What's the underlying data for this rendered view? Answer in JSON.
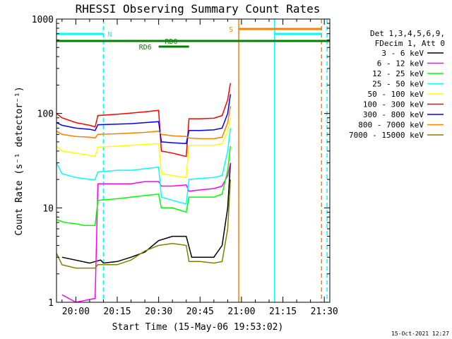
{
  "chart_data": {
    "type": "line",
    "title": "RHESSI Observing Summary Count Rates",
    "xlabel": "Start Time (15-May-06 19:53:02)",
    "ylabel": "Count Rate (s⁻¹ detector⁻¹)",
    "y_scale": "log",
    "ylim": [
      1,
      1000
    ],
    "y_ticks": [
      {
        "v": 1,
        "label": "1"
      },
      {
        "v": 10,
        "label": "10"
      },
      {
        "v": 100,
        "label": "100"
      },
      {
        "v": 1000,
        "label": "1000"
      }
    ],
    "xlim": [
      "19:53",
      "21:32"
    ],
    "x_ticks": [
      "20:00",
      "20:15",
      "20:30",
      "20:45",
      "21:00",
      "21:15",
      "21:30"
    ],
    "legend_header": [
      "Det 1,3,4,5,6,9,",
      "FDecim 1, Att 0"
    ],
    "legend_placement": "right",
    "stamp": "15-Oct-2021 12:27",
    "series": [
      {
        "name": "3 - 6 keV",
        "color": "#000000",
        "points": [
          [
            "19:55",
            3.0
          ],
          [
            "20:05",
            2.6
          ],
          [
            "20:09",
            2.8
          ],
          [
            "20:10",
            2.6
          ],
          [
            "20:15",
            2.7
          ],
          [
            "20:20",
            3.0
          ],
          [
            "20:25",
            3.4
          ],
          [
            "20:30",
            4.5
          ],
          [
            "20:35",
            5.0
          ],
          [
            "20:40",
            5.0
          ],
          [
            "20:42",
            3.0
          ],
          [
            "20:45",
            3.0
          ],
          [
            "20:50",
            3.0
          ],
          [
            "20:53",
            4.0
          ],
          [
            "20:55",
            10.0
          ],
          [
            "20:56",
            30.0
          ]
        ]
      },
      {
        "name": "6 - 12 keV",
        "color": "#ff00ff",
        "points": [
          [
            "19:55",
            1.2
          ],
          [
            "20:00",
            1.0
          ],
          [
            "20:07",
            1.1
          ],
          [
            "20:08",
            18.0
          ],
          [
            "20:15",
            18.0
          ],
          [
            "20:20",
            18.0
          ],
          [
            "20:25",
            19.0
          ],
          [
            "20:30",
            19.0
          ],
          [
            "20:31",
            17.0
          ],
          [
            "20:35",
            17.0
          ],
          [
            "20:40",
            17.5
          ],
          [
            "20:41",
            15.0
          ],
          [
            "20:45",
            15.5
          ],
          [
            "20:50",
            16.0
          ],
          [
            "20:53",
            17.0
          ],
          [
            "20:55",
            22.0
          ],
          [
            "20:56",
            30.0
          ]
        ]
      },
      {
        "name": "12 - 25 keV",
        "color": "#00ff00",
        "points": [
          [
            "19:53",
            7.5
          ],
          [
            "19:56",
            7.0
          ],
          [
            "20:00",
            6.8
          ],
          [
            "20:03",
            6.5
          ],
          [
            "20:07",
            6.5
          ],
          [
            "20:08",
            12.0
          ],
          [
            "20:15",
            12.5
          ],
          [
            "20:20",
            13.0
          ],
          [
            "20:25",
            13.5
          ],
          [
            "20:30",
            14.0
          ],
          [
            "20:31",
            10.0
          ],
          [
            "20:35",
            10.0
          ],
          [
            "20:40",
            9.0
          ],
          [
            "20:41",
            13.0
          ],
          [
            "20:45",
            13.0
          ],
          [
            "20:50",
            13.0
          ],
          [
            "20:53",
            14.0
          ],
          [
            "20:55",
            25.0
          ],
          [
            "20:56",
            45.0
          ]
        ]
      },
      {
        "name": "25 - 50 keV",
        "color": "#00ffff",
        "points": [
          [
            "19:53",
            30.0
          ],
          [
            "19:55",
            23.0
          ],
          [
            "20:00",
            21.0
          ],
          [
            "20:05",
            20.0
          ],
          [
            "20:07",
            20.0
          ],
          [
            "20:08",
            24.0
          ],
          [
            "20:15",
            25.0
          ],
          [
            "20:20",
            25.0
          ],
          [
            "20:25",
            26.0
          ],
          [
            "20:30",
            27.0
          ],
          [
            "20:31",
            13.0
          ],
          [
            "20:35",
            12.0
          ],
          [
            "20:40",
            11.0
          ],
          [
            "20:41",
            20.0
          ],
          [
            "20:45",
            20.5
          ],
          [
            "20:50",
            21.0
          ],
          [
            "20:53",
            22.0
          ],
          [
            "20:55",
            40.0
          ],
          [
            "20:56",
            70.0
          ]
        ]
      },
      {
        "name": "50 - 100 keV",
        "color": "#ffff00",
        "points": [
          [
            "19:53",
            45.0
          ],
          [
            "19:55",
            40.0
          ],
          [
            "20:00",
            38.0
          ],
          [
            "20:05",
            36.0
          ],
          [
            "20:07",
            35.0
          ],
          [
            "20:08",
            44.0
          ],
          [
            "20:15",
            45.0
          ],
          [
            "20:20",
            46.0
          ],
          [
            "20:25",
            47.0
          ],
          [
            "20:30",
            48.0
          ],
          [
            "20:31",
            23.0
          ],
          [
            "20:35",
            22.0
          ],
          [
            "20:40",
            21.0
          ],
          [
            "20:41",
            46.0
          ],
          [
            "20:45",
            46.0
          ],
          [
            "20:50",
            46.0
          ],
          [
            "20:53",
            48.0
          ],
          [
            "20:55",
            65.0
          ],
          [
            "20:56",
            90.0
          ]
        ]
      },
      {
        "name": "100 - 300 keV",
        "color": "#ff0000",
        "points": [
          [
            "19:53",
            100.0
          ],
          [
            "19:55",
            90.0
          ],
          [
            "20:00",
            80.0
          ],
          [
            "20:05",
            75.0
          ],
          [
            "20:07",
            72.0
          ],
          [
            "20:08",
            95.0
          ],
          [
            "20:15",
            98.0
          ],
          [
            "20:20",
            101.0
          ],
          [
            "20:25",
            104.0
          ],
          [
            "20:30",
            108.0
          ],
          [
            "20:31",
            40.0
          ],
          [
            "20:35",
            38.0
          ],
          [
            "20:40",
            35.0
          ],
          [
            "20:41",
            88.0
          ],
          [
            "20:45",
            88.0
          ],
          [
            "20:50",
            89.0
          ],
          [
            "20:53",
            95.0
          ],
          [
            "20:55",
            140.0
          ],
          [
            "20:56",
            210.0
          ]
        ]
      },
      {
        "name": "300 - 800 keV",
        "color": "#0000ff",
        "points": [
          [
            "19:53",
            80.0
          ],
          [
            "19:55",
            75.0
          ],
          [
            "20:00",
            70.0
          ],
          [
            "20:05",
            68.0
          ],
          [
            "20:07",
            66.0
          ],
          [
            "20:08",
            76.0
          ],
          [
            "20:15",
            77.0
          ],
          [
            "20:20",
            78.0
          ],
          [
            "20:25",
            80.0
          ],
          [
            "20:30",
            82.0
          ],
          [
            "20:31",
            50.0
          ],
          [
            "20:35",
            49.0
          ],
          [
            "20:40",
            48.0
          ],
          [
            "20:41",
            66.0
          ],
          [
            "20:45",
            66.0
          ],
          [
            "20:50",
            67.0
          ],
          [
            "20:53",
            70.0
          ],
          [
            "20:55",
            100.0
          ],
          [
            "20:56",
            160.0
          ]
        ]
      },
      {
        "name": "800 - 7000 keV",
        "color": "#ff8000",
        "points": [
          [
            "19:53",
            65.0
          ],
          [
            "19:55",
            60.0
          ],
          [
            "20:00",
            57.0
          ],
          [
            "20:05",
            56.0
          ],
          [
            "20:07",
            55.0
          ],
          [
            "20:08",
            60.0
          ],
          [
            "20:15",
            61.0
          ],
          [
            "20:20",
            62.0
          ],
          [
            "20:25",
            63.0
          ],
          [
            "20:30",
            65.0
          ],
          [
            "20:31",
            60.0
          ],
          [
            "20:35",
            58.0
          ],
          [
            "20:40",
            57.0
          ],
          [
            "20:41",
            55.0
          ],
          [
            "20:45",
            54.0
          ],
          [
            "20:50",
            54.0
          ],
          [
            "20:53",
            56.0
          ],
          [
            "20:55",
            80.0
          ],
          [
            "20:56",
            120.0
          ]
        ]
      },
      {
        "name": "7000 - 15000 keV",
        "color": "#808000",
        "points": [
          [
            "19:53",
            3.3
          ],
          [
            "19:55",
            2.5
          ],
          [
            "20:00",
            2.3
          ],
          [
            "20:05",
            2.3
          ],
          [
            "20:07",
            2.3
          ],
          [
            "20:08",
            2.5
          ],
          [
            "20:15",
            2.5
          ],
          [
            "20:20",
            2.8
          ],
          [
            "20:25",
            3.5
          ],
          [
            "20:30",
            4.0
          ],
          [
            "20:35",
            4.2
          ],
          [
            "20:40",
            4.0
          ],
          [
            "20:41",
            2.7
          ],
          [
            "20:45",
            2.7
          ],
          [
            "20:50",
            2.6
          ],
          [
            "20:53",
            2.7
          ],
          [
            "20:55",
            6.0
          ],
          [
            "20:56",
            20.0
          ]
        ]
      }
    ],
    "event_lines": [
      {
        "time": "20:10",
        "color": "#00ffff",
        "style": "dashed"
      },
      {
        "time": "20:59",
        "color": "#ff8000",
        "style": "solid"
      },
      {
        "time": "21:12",
        "color": "#00ffff",
        "style": "solid"
      },
      {
        "time": "21:29",
        "color": "#ff8000",
        "style": "dashed"
      },
      {
        "time": "21:31",
        "color": "#00ffff",
        "style": "dashed"
      }
    ],
    "flag_bars": [
      {
        "label": "N",
        "color": "#00ffff",
        "from": "19:53",
        "to": "20:10",
        "level": 1
      },
      {
        "label": "",
        "color": "#00ffff",
        "from": "21:12",
        "to": "21:29",
        "level": 1
      },
      {
        "label": "S",
        "color": "#ff8000",
        "from": "20:59",
        "to": "21:29",
        "level": 0
      },
      {
        "label": "RD0",
        "color": "#008000",
        "from": "19:53",
        "to": "21:32",
        "level": 2
      },
      {
        "label": "RD6",
        "color": "#008000",
        "from": "20:30",
        "to": "20:41",
        "level": 3
      }
    ]
  }
}
